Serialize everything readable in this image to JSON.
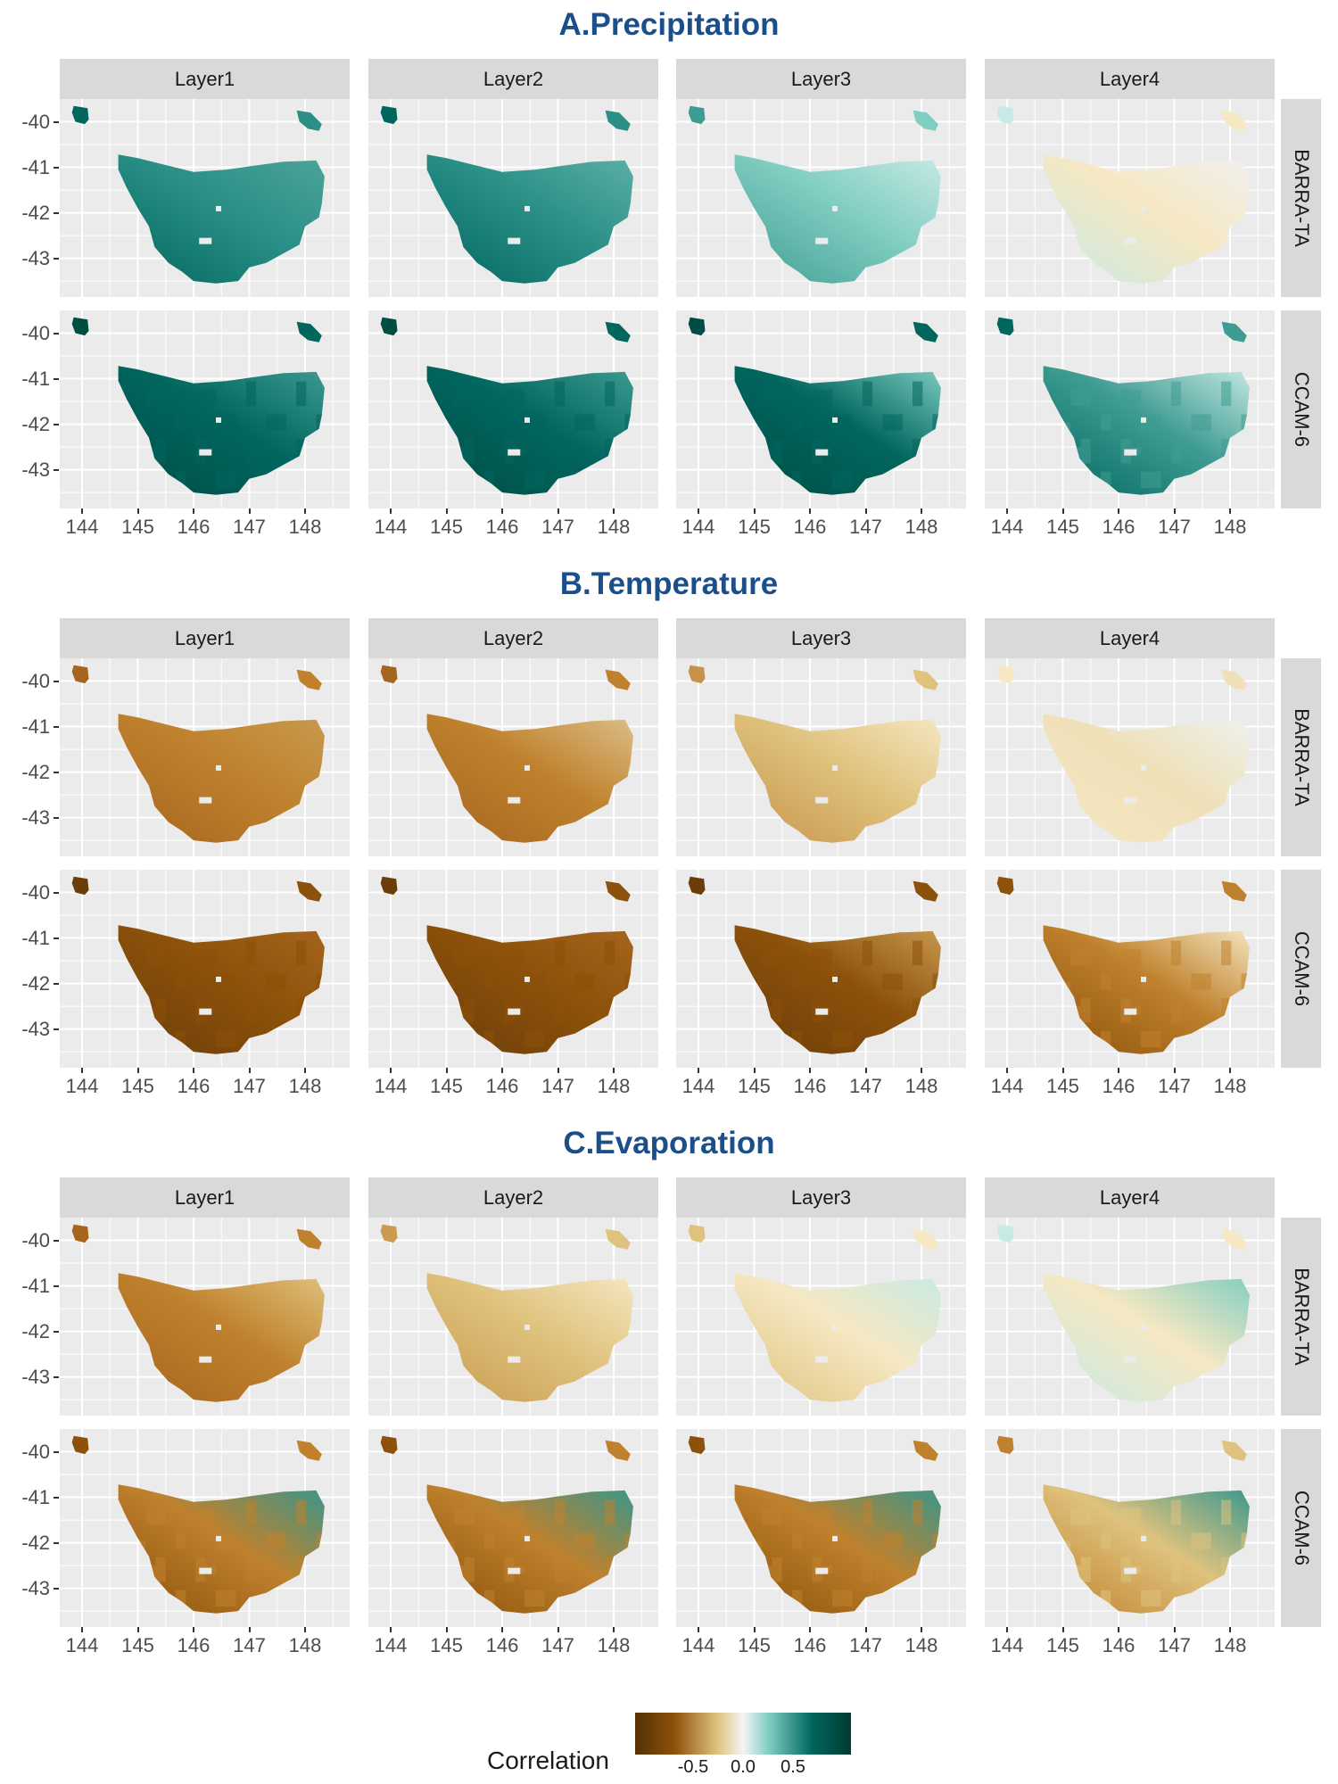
{
  "sections": [
    {
      "title": "A.Precipitation",
      "scheme": "teal"
    },
    {
      "title": "B.Temperature",
      "scheme": "brown"
    },
    {
      "title": "C.Evaporation",
      "scheme": "mixed"
    }
  ],
  "columns": [
    "Layer1",
    "Layer2",
    "Layer3",
    "Layer4"
  ],
  "rows": [
    "BARRA-TA",
    "CCAM-6"
  ],
  "y_ticks": [
    "-40",
    "-41",
    "-42",
    "-43"
  ],
  "x_ticks": [
    "144",
    "145",
    "146",
    "147",
    "148"
  ],
  "legend": {
    "title": "Correlation",
    "ticks": [
      "-0.5",
      "0.0",
      "0.5"
    ],
    "range": [
      -0.8,
      0.8
    ],
    "colors": [
      "#543005",
      "#8c510a",
      "#dfc27d",
      "#f5f5f5",
      "#80cdc1",
      "#01665e",
      "#003c30"
    ]
  },
  "colors": {
    "panel_bg": "#ebebeb",
    "strip_bg": "#d9d9d9",
    "title": "#1b4f8b"
  }
}
